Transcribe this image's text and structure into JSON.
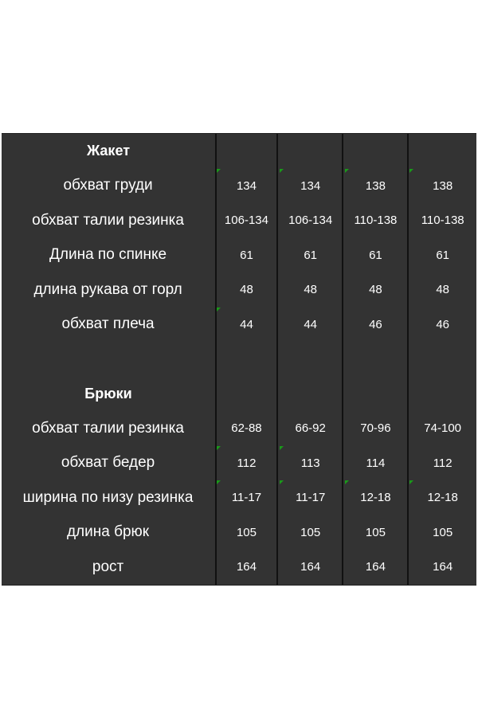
{
  "sections": [
    {
      "title": "Жакет",
      "rows": [
        {
          "label": "обхват груди",
          "values": [
            "134",
            "134",
            "138",
            "138"
          ],
          "marks": [
            true,
            true,
            true,
            true
          ]
        },
        {
          "label": "обхват талии резинка",
          "values": [
            "106-134",
            "106-134",
            "110-138",
            "110-138"
          ],
          "marks": [
            false,
            false,
            false,
            false
          ]
        },
        {
          "label": "Длина по спинке",
          "values": [
            "61",
            "61",
            "61",
            "61"
          ],
          "marks": [
            false,
            false,
            false,
            false
          ]
        },
        {
          "label": "длина рукава от горл",
          "values": [
            "48",
            "48",
            "48",
            "48"
          ],
          "marks": [
            false,
            false,
            false,
            false
          ]
        },
        {
          "label": "обхват плеча",
          "values": [
            "44",
            "44",
            "46",
            "46"
          ],
          "marks": [
            true,
            false,
            false,
            false
          ]
        }
      ]
    },
    {
      "title": "Брюки",
      "rows": [
        {
          "label": "обхват талии резинка",
          "values": [
            "62-88",
            "66-92",
            "70-96",
            "74-100"
          ],
          "marks": [
            false,
            false,
            false,
            false
          ]
        },
        {
          "label": "обхват бедер",
          "values": [
            "112",
            "113",
            "114",
            "112"
          ],
          "marks": [
            true,
            true,
            false,
            false
          ]
        },
        {
          "label": "ширина по низу резинка",
          "values": [
            "11-17",
            "11-17",
            "12-18",
            "12-18"
          ],
          "marks": [
            true,
            true,
            true,
            true
          ]
        },
        {
          "label": "длина брюк",
          "values": [
            "105",
            "105",
            "105",
            "105"
          ],
          "marks": [
            false,
            false,
            false,
            false
          ]
        },
        {
          "label": "рост",
          "values": [
            "164",
            "164",
            "164",
            "164"
          ],
          "marks": [
            false,
            false,
            false,
            false
          ]
        }
      ]
    }
  ],
  "colors": {
    "background": "#333333",
    "text": "#ffffff",
    "marker": "#1a9a1a"
  }
}
